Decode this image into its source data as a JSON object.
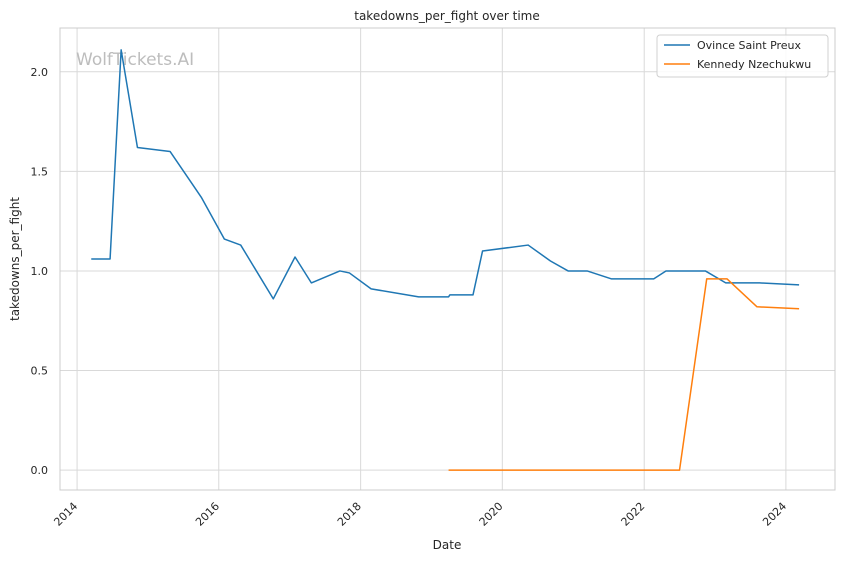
{
  "chart_data": {
    "type": "line",
    "title": "takedowns_per_fight over time",
    "xlabel": "Date",
    "ylabel": "takedowns_per_fight",
    "watermark": "WolfTickets.AI",
    "x_ticks": [
      "2014",
      "2016",
      "2018",
      "2020",
      "2022",
      "2024"
    ],
    "y_ticks": [
      "0.0",
      "0.5",
      "1.0",
      "1.5",
      "2.0"
    ],
    "xlim": [
      "2013-10-05",
      "2024-09-10"
    ],
    "ylim": [
      -0.1,
      2.22
    ],
    "grid": true,
    "legend_position": "top-right",
    "series": [
      {
        "name": "Ovince Saint Preux",
        "color": "#1f77b4",
        "points": [
          [
            "2014-03-15",
            1.06
          ],
          [
            "2014-06-20",
            1.06
          ],
          [
            "2014-08-16",
            2.11
          ],
          [
            "2014-11-08",
            1.62
          ],
          [
            "2015-04-25",
            1.6
          ],
          [
            "2015-08-08",
            1.45
          ],
          [
            "2015-10-03",
            1.37
          ],
          [
            "2016-01-30",
            1.16
          ],
          [
            "2016-04-23",
            1.13
          ],
          [
            "2016-10-08",
            0.86
          ],
          [
            "2017-01-28",
            1.07
          ],
          [
            "2017-04-22",
            0.94
          ],
          [
            "2017-09-16",
            1.0
          ],
          [
            "2017-11-04",
            0.99
          ],
          [
            "2018-02-24",
            0.91
          ],
          [
            "2018-10-27",
            0.87
          ],
          [
            "2019-03-30",
            0.87
          ],
          [
            "2019-04-06",
            0.88
          ],
          [
            "2019-08-03",
            0.88
          ],
          [
            "2019-09-21",
            1.1
          ],
          [
            "2020-05-13",
            1.13
          ],
          [
            "2020-09-05",
            1.05
          ],
          [
            "2020-12-05",
            1.0
          ],
          [
            "2021-03-13",
            1.0
          ],
          [
            "2021-07-17",
            0.96
          ],
          [
            "2022-02-19",
            0.96
          ],
          [
            "2022-04-23",
            1.0
          ],
          [
            "2022-11-12",
            1.0
          ],
          [
            "2023-02-25",
            0.94
          ],
          [
            "2023-08-19",
            0.94
          ],
          [
            "2024-03-09",
            0.93
          ]
        ]
      },
      {
        "name": "Kennedy Nzechukwu",
        "color": "#ff7f0e",
        "points": [
          [
            "2019-03-30",
            0.0
          ],
          [
            "2022-07-02",
            0.0
          ],
          [
            "2022-11-19",
            0.96
          ],
          [
            "2023-03-04",
            0.96
          ],
          [
            "2023-08-05",
            0.82
          ],
          [
            "2024-03-09",
            0.81
          ]
        ]
      }
    ]
  }
}
